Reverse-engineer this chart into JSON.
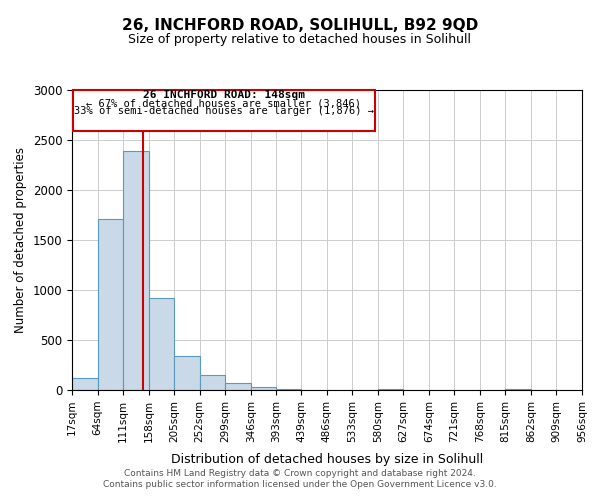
{
  "title1": "26, INCHFORD ROAD, SOLIHULL, B92 9QD",
  "title2": "Size of property relative to detached houses in Solihull",
  "xlabel": "Distribution of detached houses by size in Solihull",
  "ylabel": "Number of detached properties",
  "bin_edges": [
    17,
    64,
    111,
    158,
    205,
    252,
    299,
    346,
    393,
    439,
    486,
    533,
    580,
    627,
    674,
    721,
    768,
    815,
    862,
    909,
    956
  ],
  "bin_labels": [
    "17sqm",
    "64sqm",
    "111sqm",
    "158sqm",
    "205sqm",
    "252sqm",
    "299sqm",
    "346sqm",
    "393sqm",
    "439sqm",
    "486sqm",
    "533sqm",
    "580sqm",
    "627sqm",
    "674sqm",
    "721sqm",
    "768sqm",
    "815sqm",
    "862sqm",
    "909sqm",
    "956sqm"
  ],
  "bar_heights": [
    120,
    1710,
    2390,
    920,
    345,
    155,
    75,
    30,
    10,
    0,
    0,
    0,
    10,
    0,
    0,
    0,
    0,
    10,
    0,
    0
  ],
  "bar_color": "#c9d9e8",
  "bar_edge_color": "#5a9abf",
  "vline_x": 148,
  "vline_color": "#cc0000",
  "ylim": [
    0,
    3000
  ],
  "yticks": [
    0,
    500,
    1000,
    1500,
    2000,
    2500,
    3000
  ],
  "annotation_title": "26 INCHFORD ROAD: 148sqm",
  "annotation_line1": "← 67% of detached houses are smaller (3,846)",
  "annotation_line2": "33% of semi-detached houses are larger (1,876) →",
  "annotation_box_color": "#ffffff",
  "annotation_box_edge": "#cc0000",
  "footer1": "Contains HM Land Registry data © Crown copyright and database right 2024.",
  "footer2": "Contains public sector information licensed under the Open Government Licence v3.0.",
  "bg_color": "#ffffff",
  "grid_color": "#cccccc"
}
